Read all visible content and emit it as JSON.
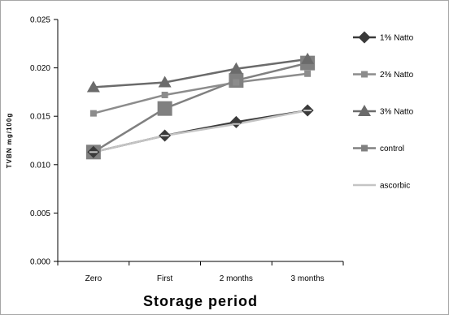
{
  "chart_data": {
    "type": "line",
    "title": "",
    "xlabel": "Storage period",
    "ylabel": "TVBN mg/100g",
    "categories": [
      "Zero",
      "First",
      "2 months",
      "3 months"
    ],
    "ylim": [
      0,
      0.025
    ],
    "yticks": [
      "0.000",
      "0.005",
      "0.010",
      "0.015",
      "0.020",
      "0.025"
    ],
    "grid": false,
    "legend_position": "right",
    "series": [
      {
        "name": "1% Natto",
        "values": [
          0.0113,
          0.013,
          0.0144,
          0.0156
        ],
        "color": "#3a3a3a",
        "marker": "diamond"
      },
      {
        "name": "2% Natto",
        "values": [
          0.0153,
          0.0172,
          0.0185,
          0.0194
        ],
        "color": "#8c8c8c",
        "marker": "square-small"
      },
      {
        "name": "3% Natto",
        "values": [
          0.018,
          0.0185,
          0.0199,
          0.0209
        ],
        "color": "#6b6b6b",
        "marker": "triangle"
      },
      {
        "name": "control",
        "values": [
          0.0113,
          0.0158,
          0.0187,
          0.0205
        ],
        "color": "#808080",
        "marker": "square"
      },
      {
        "name": "ascorbic",
        "values": [
          0.0113,
          0.013,
          0.0142,
          0.0156
        ],
        "color": "#c4c4c4",
        "marker": "dash"
      }
    ]
  }
}
